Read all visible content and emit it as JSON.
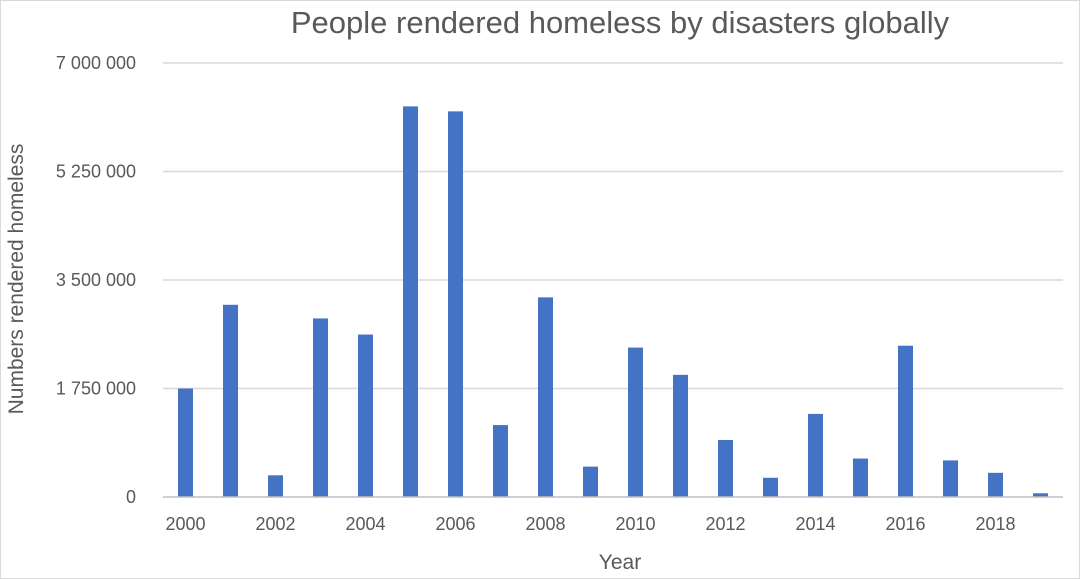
{
  "chart_data": {
    "type": "bar",
    "title": "People rendered homeless by disasters globally",
    "xlabel": "Year",
    "ylabel": "Numbers rendered homeless",
    "categories": [
      "2000",
      "2001",
      "2002",
      "2003",
      "2004",
      "2005",
      "2006",
      "2007",
      "2008",
      "2009",
      "2010",
      "2011",
      "2012",
      "2013",
      "2014",
      "2015",
      "2016",
      "2017",
      "2018",
      "2019"
    ],
    "series": [
      {
        "values": [
          1750000,
          3100000,
          350000,
          2880000,
          2620000,
          6300000,
          6220000,
          1160000,
          3220000,
          490000,
          2410000,
          1970000,
          920000,
          310000,
          1340000,
          620000,
          2440000,
          590000,
          390000,
          60000
        ],
        "color": "#4472c4"
      }
    ],
    "ylim": [
      0,
      7000000
    ],
    "yticks": [
      0,
      1750000,
      3500000,
      5250000,
      7000000
    ],
    "ytick_labels": [
      "0",
      "1 750 000",
      "3 500 000",
      "5 250 000",
      "7 000 000"
    ],
    "xtick_labels": [
      "2000",
      "2002",
      "2004",
      "2006",
      "2008",
      "2010",
      "2012",
      "2014",
      "2016",
      "2018"
    ],
    "grid": true,
    "legend": "none"
  }
}
